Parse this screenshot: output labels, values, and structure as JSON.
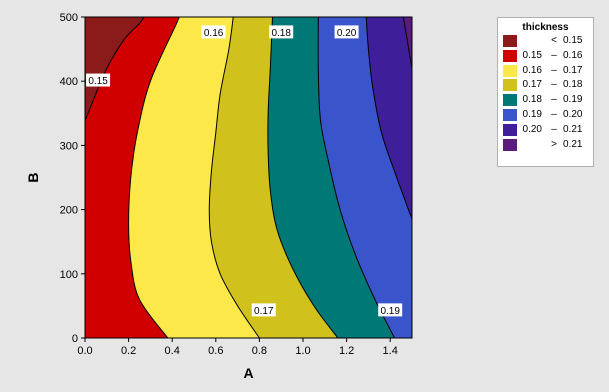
{
  "chart_data": {
    "type": "contour",
    "title": "",
    "xlabel": "A",
    "ylabel": "B",
    "xlim": [
      0,
      1.5
    ],
    "ylim": [
      0,
      500
    ],
    "x_ticks": [
      "0.0",
      "0.2",
      "0.4",
      "0.6",
      "0.8",
      "1.0",
      "1.2",
      "1.4"
    ],
    "x_tick_values": [
      0,
      0.2,
      0.4,
      0.6,
      0.8,
      1.0,
      1.2,
      1.4
    ],
    "y_ticks": [
      "0",
      "100",
      "200",
      "300",
      "400",
      "500"
    ],
    "y_tick_values": [
      0,
      100,
      200,
      300,
      400,
      500
    ],
    "legend": {
      "title": "thickness",
      "placement": "right",
      "entries": [
        {
          "lo": "",
          "sep": "<",
          "hi": "0.15",
          "color": "#8b1a1a"
        },
        {
          "lo": "0.15",
          "sep": "–",
          "hi": "0.16",
          "color": "#d10000"
        },
        {
          "lo": "0.16",
          "sep": "–",
          "hi": "0.17",
          "color": "#fde84a"
        },
        {
          "lo": "0.17",
          "sep": "–",
          "hi": "0.18",
          "color": "#d1c11c"
        },
        {
          "lo": "0.18",
          "sep": "–",
          "hi": "0.19",
          "color": "#007876"
        },
        {
          "lo": "0.19",
          "sep": "–",
          "hi": "0.20",
          "color": "#3a54cb"
        },
        {
          "lo": "0.20",
          "sep": "–",
          "hi": "0.21",
          "color": "#3e1e99"
        },
        {
          "lo": "",
          "sep": ">",
          "hi": "0.21",
          "color": "#5a1a7e"
        }
      ]
    },
    "contours": [
      {
        "level": 0.15,
        "label": "0.15",
        "label_at": [
          0.06,
          401
        ],
        "points": [
          [
            0,
            338
          ],
          [
            0.04,
            372
          ],
          [
            0.1,
            420
          ],
          [
            0.18,
            465
          ],
          [
            0.25,
            490
          ],
          [
            0.27,
            500
          ]
        ]
      },
      {
        "level": 0.16,
        "label": "0.16",
        "label_at": [
          0.59,
          476
        ],
        "points": [
          [
            0.38,
            0
          ],
          [
            0.25,
            60
          ],
          [
            0.21,
            120
          ],
          [
            0.2,
            180
          ],
          [
            0.21,
            250
          ],
          [
            0.24,
            320
          ],
          [
            0.3,
            400
          ],
          [
            0.42,
            490
          ],
          [
            0.43,
            500
          ]
        ]
      },
      {
        "level": 0.17,
        "label": "0.17",
        "label_at": [
          0.82,
          43
        ],
        "points": [
          [
            0.8,
            0
          ],
          [
            0.7,
            50
          ],
          [
            0.62,
            100
          ],
          [
            0.58,
            150
          ],
          [
            0.57,
            200
          ],
          [
            0.58,
            260
          ],
          [
            0.6,
            320
          ],
          [
            0.62,
            380
          ],
          [
            0.66,
            450
          ],
          [
            0.68,
            500
          ]
        ]
      },
      {
        "level": 0.18,
        "label": "0.18",
        "label_at": [
          0.9,
          476
        ],
        "points": [
          [
            1.16,
            0
          ],
          [
            1.05,
            50
          ],
          [
            0.95,
            110
          ],
          [
            0.88,
            170
          ],
          [
            0.85,
            230
          ],
          [
            0.84,
            290
          ],
          [
            0.84,
            350
          ],
          [
            0.85,
            420
          ],
          [
            0.86,
            500
          ]
        ]
      },
      {
        "level": 0.19,
        "label": "0.19",
        "label_at": [
          1.4,
          43
        ],
        "points": [
          [
            1.42,
            0
          ],
          [
            1.33,
            60
          ],
          [
            1.24,
            130
          ],
          [
            1.17,
            200
          ],
          [
            1.12,
            270
          ],
          [
            1.08,
            340
          ],
          [
            1.07,
            420
          ],
          [
            1.07,
            500
          ]
        ]
      },
      {
        "level": 0.2,
        "label": "0.20",
        "label_at": [
          1.2,
          476
        ],
        "points": [
          [
            1.5,
            185
          ],
          [
            1.43,
            250
          ],
          [
            1.36,
            320
          ],
          [
            1.32,
            390
          ],
          [
            1.3,
            450
          ],
          [
            1.29,
            500
          ]
        ]
      },
      {
        "level": 0.21,
        "label": "",
        "label_at": null,
        "points": [
          [
            1.5,
            420
          ],
          [
            1.48,
            460
          ],
          [
            1.46,
            500
          ]
        ]
      }
    ],
    "grid": false
  }
}
